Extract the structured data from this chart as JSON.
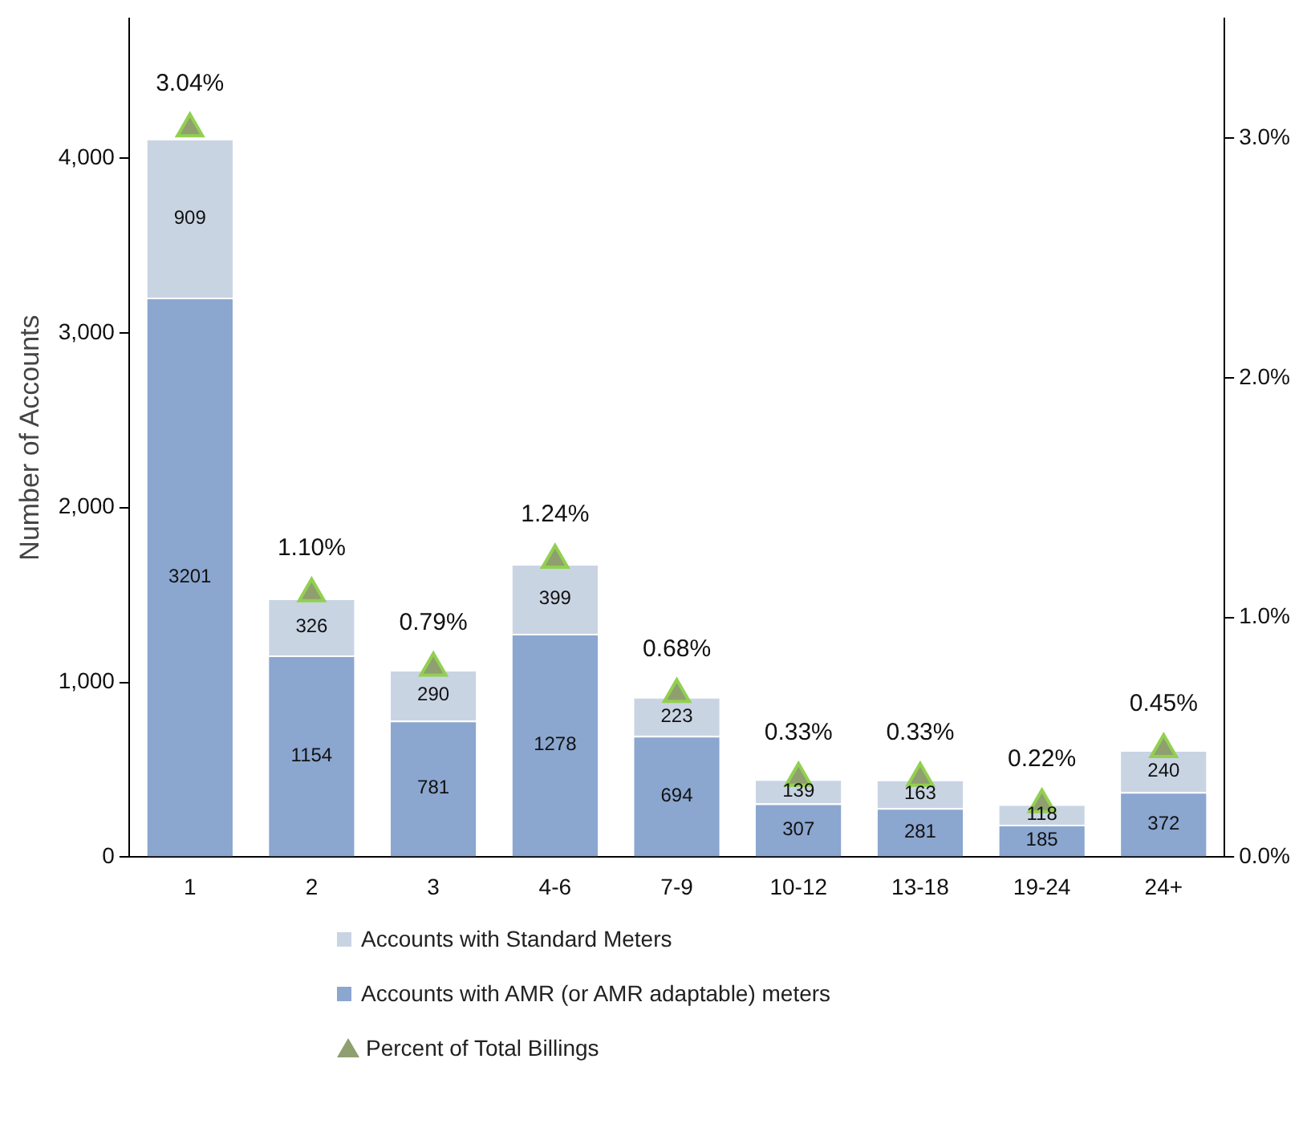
{
  "chart_data": {
    "type": "bar",
    "stacked": true,
    "ylabel": "Number of Accounts",
    "categories": [
      "1",
      "2",
      "3",
      "4-6",
      "7-9",
      "10-12",
      "13-18",
      "19-24",
      "24+"
    ],
    "series": [
      {
        "name": "Accounts with AMR (or AMR adaptable) meters",
        "color": "#8ba6cf",
        "values": [
          3201,
          1154,
          781,
          1278,
          694,
          307,
          281,
          185,
          372
        ],
        "value_labels": [
          "3201",
          "1154",
          "781",
          "1278",
          "694",
          "307",
          "281",
          "185",
          "372"
        ]
      },
      {
        "name": "Accounts with Standard Meters",
        "color": "#c9d4e3",
        "values": [
          909,
          326,
          290,
          399,
          223,
          139,
          163,
          118,
          240
        ],
        "value_labels": [
          "909",
          "326",
          "290",
          "399",
          "223",
          "139",
          "163",
          "118",
          "240"
        ]
      },
      {
        "name": "Percent of Total Billings",
        "type": "scatter",
        "axis": "y2",
        "marker": "triangle",
        "color": "#8f9f70",
        "x": [
          "1",
          "2",
          "3",
          "4-6",
          "7-9",
          "10-12",
          "13-18",
          "19-24",
          "24+"
        ],
        "values": [
          3.04,
          1.1,
          0.79,
          1.24,
          0.68,
          0.33,
          0.33,
          0.22,
          0.45
        ],
        "value_labels": [
          "3.04%",
          "1.10%",
          "0.79%",
          "1.24%",
          "0.68%",
          "0.33%",
          "0.33%",
          "0.22%",
          "0.45%"
        ]
      }
    ],
    "ylim": [
      0,
      4800
    ],
    "yticks": [
      0,
      {
        "value": 1000,
        "label": "1,000"
      },
      {
        "value": 2000,
        "label": "2,000"
      },
      {
        "value": 3000,
        "label": "3,000"
      },
      {
        "value": 4000,
        "label": "4,000"
      }
    ],
    "y2lim": [
      0,
      3.5
    ],
    "y2ticks": [
      {
        "value": 0,
        "label": "0.0%"
      },
      {
        "value": 1,
        "label": "1.0%"
      },
      {
        "value": 2,
        "label": "2.0%"
      },
      {
        "value": 3,
        "label": "3.0%"
      }
    ],
    "grid": false,
    "legend": "bottom"
  }
}
